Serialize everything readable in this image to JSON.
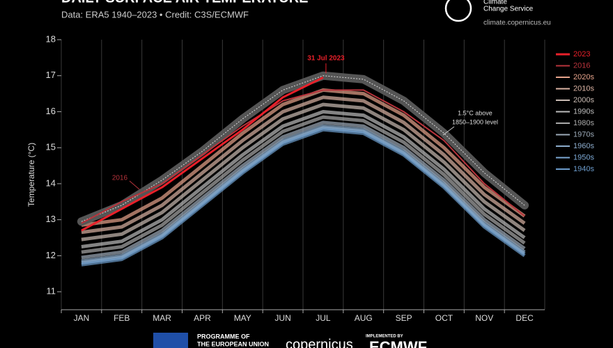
{
  "chart_data": {
    "type": "line",
    "title": "DAILY SURFACE AIR TEMPERATURE",
    "subtitle": "Data: ERA5 1940–2023 • Credit: C3S/ECMWF",
    "y_label": "Temperature (°C)",
    "categories": [
      "JAN",
      "FEB",
      "MAR",
      "APR",
      "MAY",
      "JUN",
      "JUL",
      "AUG",
      "SEP",
      "OCT",
      "NOV",
      "DEC"
    ],
    "ylim": [
      10.5,
      18
    ],
    "yticks": [
      11,
      12,
      13,
      14,
      15,
      16,
      17,
      18
    ],
    "grid": true,
    "legend": "top-right",
    "series": [
      {
        "name": "2023",
        "color": "#e8202a",
        "values": [
          12.7,
          13.3,
          13.9,
          14.7,
          15.5,
          16.4,
          16.95,
          null,
          null,
          null,
          null,
          null
        ]
      },
      {
        "name": "2016",
        "color": "#b8343c",
        "values": [
          12.9,
          13.5,
          14.0,
          14.8,
          15.6,
          16.3,
          16.6,
          16.6,
          16.0,
          15.2,
          14.0,
          13.1
        ]
      },
      {
        "name": "2020s",
        "color": "#e8a48c",
        "values": [
          12.85,
          13.0,
          13.6,
          14.5,
          15.4,
          16.2,
          16.6,
          16.5,
          15.9,
          15.0,
          13.9,
          13.1
        ]
      },
      {
        "name": "2010s",
        "color": "#dcb4a4",
        "values": [
          12.65,
          12.8,
          13.4,
          14.3,
          15.2,
          16.0,
          16.4,
          16.3,
          15.7,
          14.8,
          13.7,
          12.9
        ]
      },
      {
        "name": "2000s",
        "color": "#cabcb4",
        "values": [
          12.45,
          12.6,
          13.2,
          14.1,
          15.0,
          15.8,
          16.2,
          16.1,
          15.5,
          14.6,
          13.5,
          12.7
        ]
      },
      {
        "name": "1990s",
        "color": "#bcbcbc",
        "values": [
          12.25,
          12.4,
          13.0,
          13.9,
          14.8,
          15.6,
          16.0,
          15.9,
          15.3,
          14.4,
          13.3,
          12.5
        ]
      },
      {
        "name": "1980s",
        "color": "#aaaaaa",
        "values": [
          12.1,
          12.25,
          12.85,
          13.75,
          14.65,
          15.45,
          15.85,
          15.75,
          15.15,
          14.25,
          13.15,
          12.35
        ]
      },
      {
        "name": "1970s",
        "color": "#9caab8",
        "values": [
          11.95,
          12.1,
          12.7,
          13.6,
          14.5,
          15.3,
          15.7,
          15.6,
          15.0,
          14.1,
          13.0,
          12.2
        ]
      },
      {
        "name": "1960s",
        "color": "#8caccc",
        "values": [
          11.85,
          12.0,
          12.6,
          13.5,
          14.4,
          15.2,
          15.6,
          15.5,
          14.9,
          14.0,
          12.9,
          12.1
        ]
      },
      {
        "name": "1950s",
        "color": "#7ca8d4",
        "values": [
          11.8,
          11.95,
          12.55,
          13.45,
          14.35,
          15.15,
          15.55,
          15.45,
          14.85,
          13.95,
          12.85,
          12.05
        ]
      },
      {
        "name": "1940s",
        "color": "#6c9ccc",
        "values": [
          11.75,
          11.9,
          12.5,
          13.4,
          14.3,
          15.1,
          15.5,
          15.4,
          14.8,
          13.9,
          12.8,
          12.0
        ]
      }
    ],
    "threshold": {
      "label": [
        "1.5°C above",
        "1850–1900 level"
      ],
      "color": "#555555",
      "values": [
        12.95,
        13.4,
        14.1,
        14.9,
        15.8,
        16.6,
        17.0,
        16.9,
        16.3,
        15.4,
        14.3,
        13.4
      ]
    },
    "annotations": [
      "31 Jul 2023",
      "2016"
    ]
  },
  "header": {
    "logo": [
      "Climate",
      "Change Service"
    ],
    "url": "climate.copernicus.eu"
  },
  "footer": {
    "programme": [
      "PROGRAMME OF",
      "THE EUROPEAN UNION"
    ],
    "copernicus": "copernicus",
    "implemented": "IMPLEMENTED BY",
    "ecmwf": "ECMWF"
  }
}
